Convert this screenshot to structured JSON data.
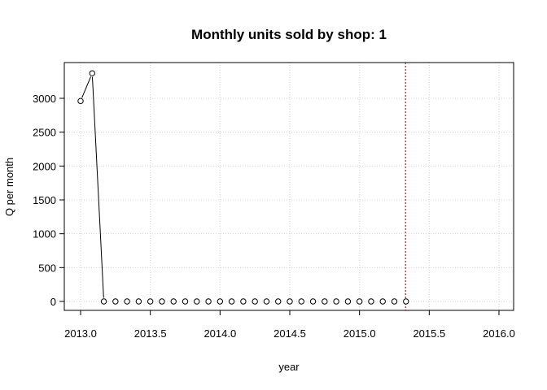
{
  "chart_data": {
    "type": "line",
    "title": "Monthly units sold by shop: 1",
    "xlabel": "year",
    "ylabel": "Q per month",
    "xlim": [
      2013.0,
      2016.0
    ],
    "ylim": [
      0,
      3300
    ],
    "x_ticks": [
      "2013.0",
      "2013.5",
      "2014.0",
      "2014.5",
      "2015.0",
      "2015.5",
      "2016.0"
    ],
    "y_ticks": [
      "0",
      "500",
      "1000",
      "1500",
      "2000",
      "2500",
      "3000"
    ],
    "grid": true,
    "grid_style": "dotted",
    "vertical_marker": {
      "x": 2015.33,
      "color": "#8b0000",
      "style": "dotted"
    },
    "series": [
      {
        "x": [
          2013.0,
          2013.0833,
          2013.1667,
          2013.25,
          2013.3333,
          2013.4167,
          2013.5,
          2013.5833,
          2013.6667,
          2013.75,
          2013.8333,
          2013.9167,
          2014.0,
          2014.0833,
          2014.1667,
          2014.25,
          2014.3333,
          2014.4167,
          2014.5,
          2014.5833,
          2014.6667,
          2014.75,
          2014.8333,
          2014.9167,
          2015.0,
          2015.0833,
          2015.1667,
          2015.25,
          2015.3333
        ],
        "values": [
          2960,
          3370,
          0,
          0,
          0,
          0,
          0,
          0,
          0,
          0,
          0,
          0,
          0,
          0,
          0,
          0,
          0,
          0,
          0,
          0,
          0,
          0,
          0,
          0,
          0,
          0,
          0,
          0,
          0
        ],
        "line_x": [
          2013.0,
          2013.0833,
          2013.1667
        ],
        "line_values": [
          2960,
          3370,
          0
        ]
      }
    ]
  }
}
